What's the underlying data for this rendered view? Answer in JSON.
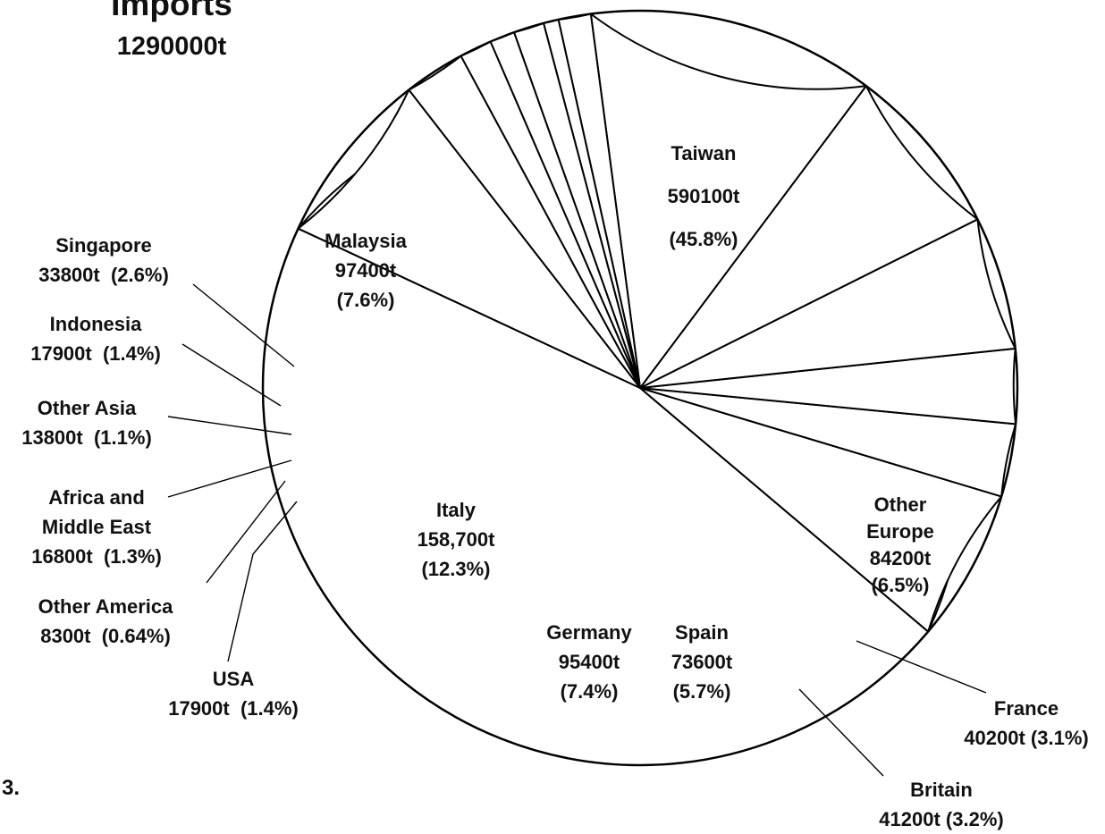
{
  "chart_data": {
    "type": "pie",
    "title": "Imports",
    "subtitle": "1290000t",
    "total": 1290000,
    "slices": [
      {
        "label": "Taiwan",
        "value_text": "590100t",
        "pct_text": "(45.8%)",
        "value": 590100,
        "pct": 45.8
      },
      {
        "label": "Other Europe",
        "value_text": "84200t",
        "pct_text": "(6.5%)",
        "value": 84200,
        "pct": 6.5
      },
      {
        "label": "France",
        "value_text": "40200t",
        "pct_text": "(3.1%)",
        "value": 40200,
        "pct": 3.1
      },
      {
        "label": "Britain",
        "value_text": "41200t",
        "pct_text": "(3.2%)",
        "value": 41200,
        "pct": 3.2
      },
      {
        "label": "Spain",
        "value_text": "73600t",
        "pct_text": "(5.7%)",
        "value": 73600,
        "pct": 5.7
      },
      {
        "label": "Germany",
        "value_text": "95400t",
        "pct_text": "(7.4%)",
        "value": 95400,
        "pct": 7.4
      },
      {
        "label": "Italy",
        "value_text": "158,700t",
        "pct_text": "(12.3%)",
        "value": 158700,
        "pct": 12.3
      },
      {
        "label": "USA",
        "value_text": "17900t",
        "pct_text": "(1.4%)",
        "value": 17900,
        "pct": 1.4
      },
      {
        "label": "Other  America",
        "value_text": "8300t",
        "pct_text": "(0.64%)",
        "value": 8300,
        "pct": 0.64
      },
      {
        "label": "Africa and Middle East",
        "value_text": "16800t",
        "pct_text": "(1.3%)",
        "value": 16800,
        "pct": 1.3
      },
      {
        "label": "Other  Asia",
        "value_text": "13800t",
        "pct_text": "(1.1%)",
        "value": 13800,
        "pct": 1.1
      },
      {
        "label": "Indonesia",
        "value_text": "17900t",
        "pct_text": "(1.4%)",
        "value": 17900,
        "pct": 1.4
      },
      {
        "label": "Singapore",
        "value_text": "33800t",
        "pct_text": "(2.6%)",
        "value": 33800,
        "pct": 2.6
      },
      {
        "label": "Malaysia",
        "value_text": "97400t",
        "pct_text": "(7.6%)",
        "value": 97400,
        "pct": 7.6
      }
    ],
    "legend": "none",
    "colors": {
      "fill": "#ffffff",
      "stroke": "#000000"
    }
  },
  "figure_marker": "3."
}
